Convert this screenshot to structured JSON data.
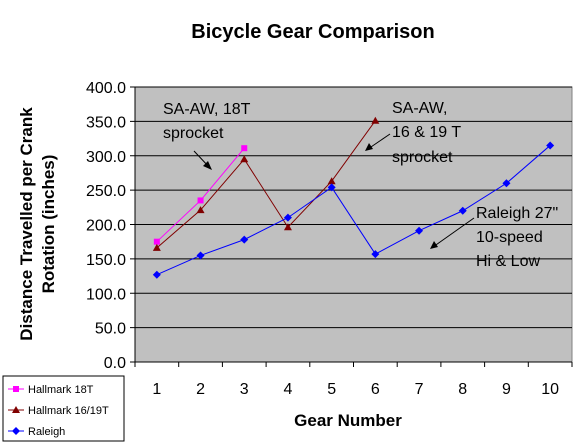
{
  "chart_data": {
    "type": "line",
    "title": "Bicycle Gear Comparison",
    "xlabel": "Gear Number",
    "ylabel": "Distance Travelled per Crank Rotation (inches)",
    "ylim": [
      0,
      400
    ],
    "ytick_labels": [
      "0.0",
      "50.0",
      "100.0",
      "150.0",
      "200.0",
      "250.0",
      "300.0",
      "350.0",
      "400.0"
    ],
    "xtick_labels": [
      "1",
      "2",
      "3",
      "4",
      "5",
      "6",
      "7",
      "8",
      "9",
      "10"
    ],
    "grid": true,
    "legend_position": "bottom-left",
    "series": [
      {
        "name": "Hallmark 18T",
        "color": "#FF00FF",
        "marker": "square",
        "x": [
          1,
          2,
          3
        ],
        "values": [
          175,
          235,
          311
        ]
      },
      {
        "name": "Hallmark 16/19T",
        "color": "#800000",
        "marker": "triangle",
        "x": [
          1,
          2,
          3,
          4,
          5,
          6
        ],
        "values": [
          166,
          221,
          295,
          196,
          263,
          351
        ]
      },
      {
        "name": "Raleigh",
        "color": "#0000FF",
        "marker": "diamond",
        "x": [
          1,
          2,
          3,
          4,
          5,
          6,
          7,
          8,
          9,
          10
        ],
        "values": [
          127,
          155,
          178,
          210,
          254,
          157,
          191,
          220,
          260,
          315
        ]
      }
    ],
    "annotations": [
      {
        "lines": [
          "SA-AW,  18T",
          "sprocket"
        ]
      },
      {
        "lines": [
          "SA-AW,",
          "16 & 19 T",
          "sprocket"
        ]
      },
      {
        "lines": [
          "Raleigh 27\"",
          "10-speed",
          "Hi & Low"
        ]
      }
    ]
  }
}
